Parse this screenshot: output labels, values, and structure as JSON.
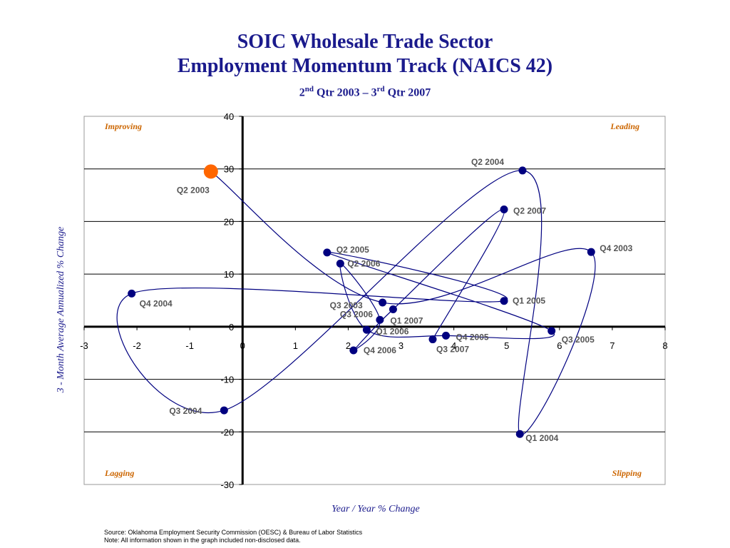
{
  "title": {
    "line1": "SOIC Wholesale Trade Sector",
    "line2": "Employment Momentum Track (NAICS 42)",
    "line3_a": "2",
    "line3_sup1": "nd",
    "line3_b": " Qtr 2003 – 3",
    "line3_sup2": "rd",
    "line3_c": " Qtr 2007"
  },
  "footnote": {
    "source": "Source:  Oklahoma Employment Security Commission (OESC) & Bureau of Labor Statistics",
    "note": "Note: All information shown in the graph included non-disclosed data."
  },
  "colors": {
    "title": "#1a1a8c",
    "quadrant_label": "#cc6600",
    "point": "#000080",
    "line": "#000080",
    "start_point": "#ff6600",
    "point_label": "#555555"
  },
  "chart_data": {
    "type": "scatter",
    "connected": true,
    "xlabel": "Year / Year % Change",
    "ylabel": "3 - Month Average Annualized % Change",
    "xlim": [
      -3,
      8
    ],
    "ylim": [
      -30,
      40
    ],
    "x_ticks": [
      "-3",
      "-2",
      "-1",
      "0",
      "1",
      "2",
      "3",
      "4",
      "5",
      "6",
      "7",
      "8"
    ],
    "y_ticks": [
      "-30",
      "-20",
      "-10",
      "0",
      "10",
      "20",
      "30",
      "40"
    ],
    "grid": "horizontal",
    "quadrants": {
      "top_left": "Improving",
      "top_right": "Leading",
      "bottom_left": "Lagging",
      "bottom_right": "Slipping"
    },
    "points": [
      {
        "label": "Q2 2003",
        "x": -0.6,
        "y": 29.5,
        "start": true
      },
      {
        "label": "Q3 2003",
        "x": 2.65,
        "y": 4.6
      },
      {
        "label": "Q4 2003",
        "x": 6.6,
        "y": 14.2
      },
      {
        "label": "Q1 2004",
        "x": 5.25,
        "y": -20.4
      },
      {
        "label": "Q2 2004",
        "x": 5.3,
        "y": 29.7
      },
      {
        "label": "Q3 2004",
        "x": -0.35,
        "y": -15.9
      },
      {
        "label": "Q4 2004",
        "x": -2.1,
        "y": 6.3
      },
      {
        "label": "Q1 2005",
        "x": 4.95,
        "y": 4.9
      },
      {
        "label": "Q2 2005",
        "x": 1.6,
        "y": 14.1
      },
      {
        "label": "Q3 2005",
        "x": 5.85,
        "y": -0.8
      },
      {
        "label": "Q4 2005",
        "x": 3.85,
        "y": -1.7
      },
      {
        "label": "Q1 2006",
        "x": 2.35,
        "y": -0.6
      },
      {
        "label": "Q2 2006",
        "x": 1.85,
        "y": 12.0
      },
      {
        "label": "Q3 2006",
        "x": 2.6,
        "y": 1.3
      },
      {
        "label": "Q4 2006",
        "x": 2.1,
        "y": -4.5
      },
      {
        "label": "Q1 2007",
        "x": 2.85,
        "y": 3.3
      },
      {
        "label": "Q2 2007",
        "x": 4.95,
        "y": 22.3
      },
      {
        "label": "Q3 2007",
        "x": 3.6,
        "y": -2.4
      }
    ]
  }
}
